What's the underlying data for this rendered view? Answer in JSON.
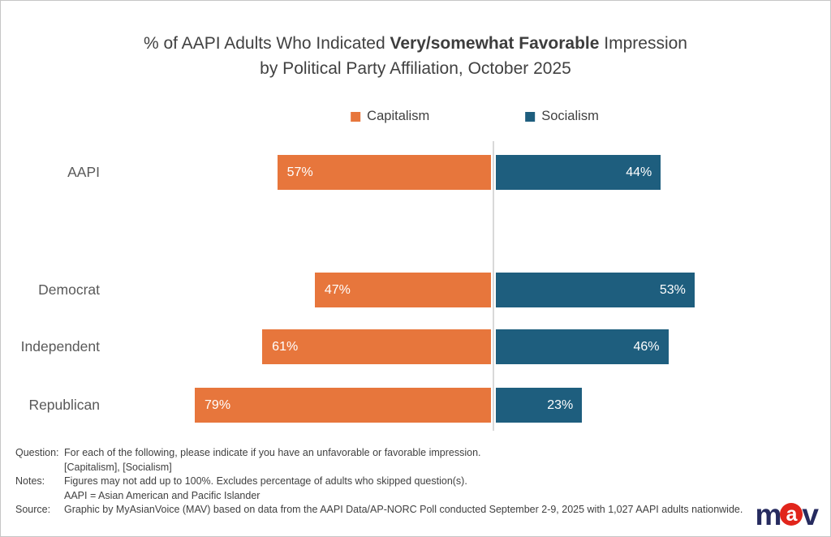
{
  "title": {
    "line1_prefix": "% of AAPI Adults Who Indicated ",
    "line1_bold": "Very/somewhat Favorable",
    "line1_suffix": " Impression",
    "line2": "by Political Party Affiliation, October 2025"
  },
  "legend": [
    {
      "label": "Capitalism",
      "color": "#E7763C"
    },
    {
      "label": "Socialism",
      "color": "#1E5E7E"
    }
  ],
  "chart_data": {
    "type": "bar",
    "orientation": "horizontal-diverging",
    "categories": [
      "AAPI",
      "Democrat",
      "Independent",
      "Republican"
    ],
    "series": [
      {
        "name": "Capitalism",
        "side": "left",
        "color": "#E7763C",
        "values": [
          57,
          47,
          61,
          79
        ]
      },
      {
        "name": "Socialism",
        "side": "right",
        "color": "#1E5E7E",
        "values": [
          44,
          53,
          46,
          23
        ]
      }
    ],
    "value_suffix": "%",
    "value_label_color": "#FFFFFF",
    "center_axis_color": "#D9D9D9",
    "grid": false,
    "legend_position": "top-center"
  },
  "footer": {
    "rows": [
      {
        "label": "Question:",
        "text": "For each of the following, please indicate if you have an unfavorable or favorable impression."
      },
      {
        "label": "",
        "text": "[Capitalism], [Socialism]"
      },
      {
        "label": "Notes:",
        "text": "Figures may not add up to 100%. Excludes percentage of adults who skipped question(s)."
      },
      {
        "label": "",
        "text": "AAPI = Asian American and Pacific Islander"
      },
      {
        "label": "Source:",
        "text": "Graphic by MyAsianVoice (MAV) based on data from the AAPI Data/AP-NORC Poll conducted September 2-9, 2025 with 1,027 AAPI adults nationwide."
      }
    ]
  },
  "logo": {
    "m": "m",
    "a": "a",
    "v": "v",
    "navy": "#262B5F",
    "red": "#E1251B"
  }
}
